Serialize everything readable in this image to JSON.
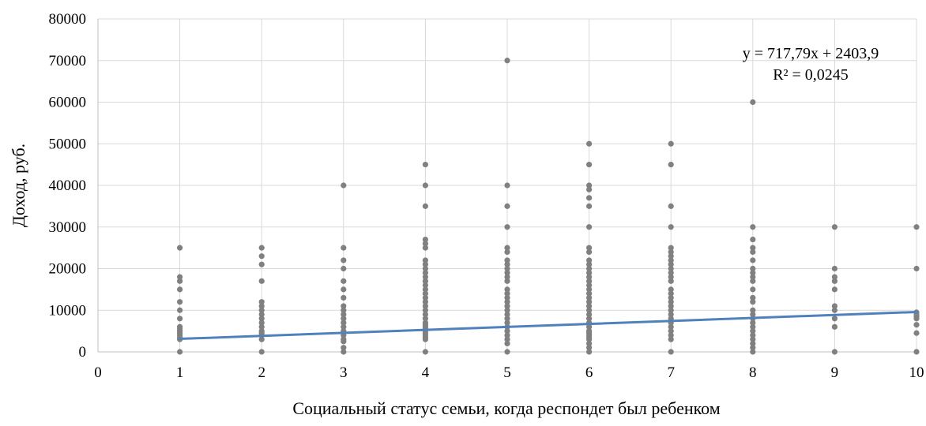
{
  "chart_data": {
    "type": "scatter",
    "title": "",
    "xlabel": "Социальный статус семьи, когда респондет был ребенком",
    "ylabel": "Доход, руб.",
    "xlim": [
      0,
      10
    ],
    "ylim": [
      0,
      80000
    ],
    "x_ticks": [
      "0",
      "1",
      "2",
      "3",
      "4",
      "5",
      "6",
      "7",
      "8",
      "9",
      "10"
    ],
    "y_ticks": [
      "0",
      "10000",
      "20000",
      "30000",
      "40000",
      "50000",
      "60000",
      "70000",
      "80000"
    ],
    "grid": true,
    "legend": "none",
    "points": [
      {
        "x": 1,
        "y": [
          25000,
          18000,
          17000,
          15000,
          12000,
          10000,
          8000,
          6000,
          5500,
          5000,
          4500,
          4000,
          3500,
          3000,
          0
        ]
      },
      {
        "x": 2,
        "y": [
          25000,
          23000,
          21000,
          17000,
          12000,
          11000,
          10000,
          9000,
          8000,
          7000,
          6000,
          5000,
          4500,
          4000,
          3000,
          0
        ]
      },
      {
        "x": 3,
        "y": [
          40000,
          25000,
          22000,
          20000,
          17000,
          15000,
          13000,
          11000,
          10000,
          9000,
          8000,
          7000,
          6000,
          5000,
          4500,
          4000,
          3000,
          2500,
          1000,
          0
        ]
      },
      {
        "x": 4,
        "y": [
          45000,
          40000,
          35000,
          27000,
          26000,
          25000,
          22000,
          21000,
          20000,
          19000,
          18000,
          17000,
          16000,
          15000,
          14000,
          13000,
          12000,
          11000,
          10000,
          9000,
          8000,
          7000,
          6500,
          6000,
          5500,
          5000,
          4500,
          4000,
          3500,
          3000,
          0
        ]
      },
      {
        "x": 5,
        "y": [
          70000,
          40000,
          35000,
          30000,
          25000,
          24000,
          22000,
          21000,
          20000,
          19000,
          18000,
          17000,
          15000,
          14000,
          13000,
          12000,
          11000,
          10000,
          9000,
          8000,
          7000,
          6000,
          5000,
          4000,
          3000,
          2000,
          0
        ]
      },
      {
        "x": 6,
        "y": [
          50000,
          45000,
          40000,
          39000,
          37000,
          35000,
          30000,
          25000,
          24000,
          22000,
          21000,
          20000,
          19000,
          18000,
          17000,
          16000,
          15000,
          14000,
          13000,
          12000,
          11000,
          10000,
          9000,
          8000,
          7000,
          6000,
          5000,
          4500,
          4000,
          3500,
          3000,
          2000,
          1000,
          0
        ]
      },
      {
        "x": 7,
        "y": [
          50000,
          45000,
          35000,
          30000,
          25000,
          24000,
          23000,
          22000,
          21000,
          20000,
          19000,
          18000,
          17000,
          15000,
          14000,
          13000,
          12000,
          11000,
          10000,
          9000,
          8000,
          7000,
          6000,
          5000,
          4000,
          3000,
          0
        ]
      },
      {
        "x": 8,
        "y": [
          60000,
          30000,
          27000,
          25000,
          24000,
          22000,
          20000,
          19000,
          18000,
          17000,
          15000,
          13000,
          12000,
          10000,
          9000,
          8000,
          7000,
          6000,
          5000,
          4000,
          3000,
          2000,
          1000,
          0
        ]
      },
      {
        "x": 9,
        "y": [
          30000,
          20000,
          18000,
          17000,
          15000,
          11000,
          10000,
          8000,
          6000,
          0
        ]
      },
      {
        "x": 10,
        "y": [
          30000,
          20000,
          9500,
          9000,
          8500,
          8000,
          6500,
          4500,
          0
        ]
      }
    ],
    "trendline": {
      "slope": 717.79,
      "intercept": 2403.9,
      "x_range": [
        1,
        10
      ],
      "equation": "y = 717,79x + 2403,9",
      "r_squared": "R² = 0,0245"
    },
    "colors": {
      "points": "#808080",
      "trendline": "#4f81bd",
      "grid": "#d9d9d9"
    }
  }
}
